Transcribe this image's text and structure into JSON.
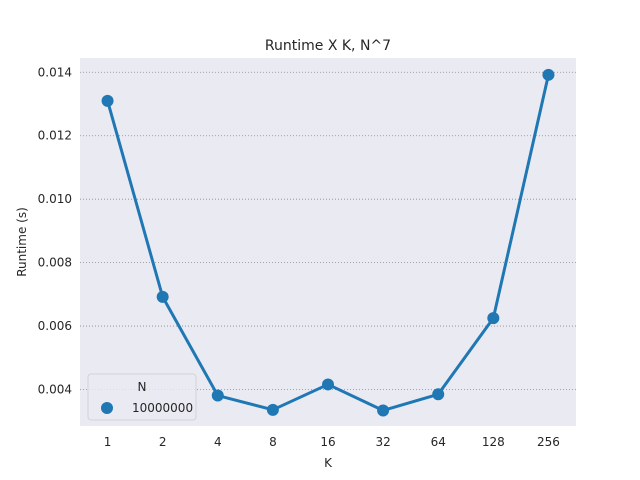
{
  "chart_data": {
    "type": "line",
    "title": "Runtime X K, N^7",
    "xlabel": "K",
    "ylabel": "Runtime (s)",
    "categories": [
      "1",
      "2",
      "4",
      "8",
      "16",
      "32",
      "64",
      "128",
      "256"
    ],
    "ylim": [
      0.00285,
      0.01445
    ],
    "yticks": [
      "0.004",
      "0.006",
      "0.008",
      "0.010",
      "0.012",
      "0.014"
    ],
    "grid": "horizontal-dotted",
    "legend": {
      "title": "N",
      "placement": "lower-left",
      "entries": [
        "10000000"
      ]
    },
    "series": [
      {
        "name": "10000000",
        "values": [
          0.0131,
          0.00692,
          0.00381,
          0.00336,
          0.00416,
          0.00334,
          0.00385,
          0.00625,
          0.01392
        ]
      }
    ]
  },
  "colors": {
    "line": "#1f77b4",
    "plot_background": "#eaeaf2",
    "grid": "#8c8c8c",
    "text": "#262626"
  }
}
